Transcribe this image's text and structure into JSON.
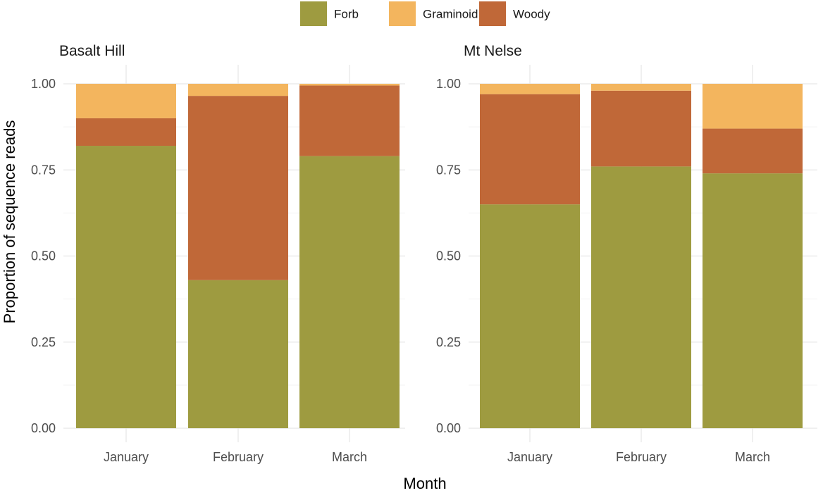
{
  "chart_data": {
    "type": "bar",
    "stacked": true,
    "xlabel": "Month",
    "ylabel": "Proportion of sequence reads",
    "ylim": [
      0,
      1
    ],
    "y_ticks": [
      "0.00",
      "0.25",
      "0.50",
      "0.75",
      "1.00"
    ],
    "y_tick_values": [
      0,
      0.25,
      0.5,
      0.75,
      1.0
    ],
    "grid": true,
    "legend": {
      "position": "top",
      "items": [
        {
          "name": "Forb",
          "color": "#9e9b40"
        },
        {
          "name": "Graminoid",
          "color": "#f3b55e"
        },
        {
          "name": "Woody",
          "color": "#c06838"
        }
      ]
    },
    "stack_order": [
      "Forb",
      "Woody",
      "Graminoid"
    ],
    "facets": [
      {
        "title": "Basalt Hill",
        "categories": [
          "January",
          "February",
          "March"
        ],
        "series": [
          {
            "name": "Forb",
            "values": [
              0.82,
              0.43,
              0.79
            ]
          },
          {
            "name": "Woody",
            "values": [
              0.08,
              0.535,
              0.205
            ]
          },
          {
            "name": "Graminoid",
            "values": [
              0.1,
              0.035,
              0.005
            ]
          }
        ]
      },
      {
        "title": "Mt Nelse",
        "categories": [
          "January",
          "February",
          "March"
        ],
        "series": [
          {
            "name": "Forb",
            "values": [
              0.65,
              0.76,
              0.74
            ]
          },
          {
            "name": "Woody",
            "values": [
              0.32,
              0.22,
              0.13
            ]
          },
          {
            "name": "Graminoid",
            "values": [
              0.03,
              0.02,
              0.13
            ]
          }
        ]
      }
    ]
  }
}
